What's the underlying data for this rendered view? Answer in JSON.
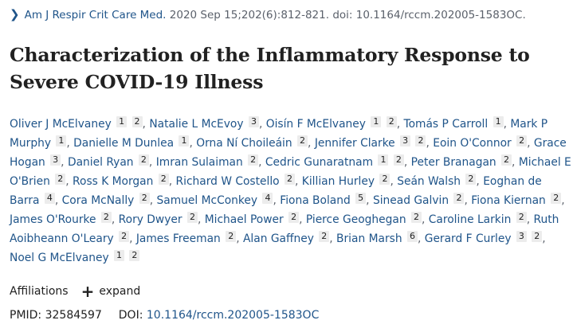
{
  "citation": {
    "journal": "Am J Respir Crit Care Med.",
    "details": "2020 Sep 15;202(6):812-821. doi: 10.1164/rccm.202005-1583OC."
  },
  "title": "Characterization of the Inflammatory Response to Severe COVID-19 Illness",
  "authors": [
    {
      "name": "Oliver J McElvaney",
      "aff": [
        "1",
        "2"
      ]
    },
    {
      "name": "Natalie L McEvoy",
      "aff": [
        "3"
      ]
    },
    {
      "name": "Oisín F McElvaney",
      "aff": [
        "1",
        "2"
      ]
    },
    {
      "name": "Tomás P Carroll",
      "aff": [
        "1"
      ]
    },
    {
      "name": "Mark P Murphy",
      "aff": [
        "1"
      ]
    },
    {
      "name": "Danielle M Dunlea",
      "aff": [
        "1"
      ]
    },
    {
      "name": "Orna Ní Choileáin",
      "aff": [
        "2"
      ]
    },
    {
      "name": "Jennifer Clarke",
      "aff": [
        "3",
        "2"
      ]
    },
    {
      "name": "Eoin O'Connor",
      "aff": [
        "2"
      ]
    },
    {
      "name": "Grace Hogan",
      "aff": [
        "3"
      ]
    },
    {
      "name": "Daniel Ryan",
      "aff": [
        "2"
      ]
    },
    {
      "name": "Imran Sulaiman",
      "aff": [
        "2"
      ]
    },
    {
      "name": "Cedric Gunaratnam",
      "aff": [
        "1",
        "2"
      ]
    },
    {
      "name": "Peter Branagan",
      "aff": [
        "2"
      ]
    },
    {
      "name": "Michael E O'Brien",
      "aff": [
        "2"
      ]
    },
    {
      "name": "Ross K Morgan",
      "aff": [
        "2"
      ]
    },
    {
      "name": "Richard W Costello",
      "aff": [
        "2"
      ]
    },
    {
      "name": "Killian Hurley",
      "aff": [
        "2"
      ]
    },
    {
      "name": "Seán Walsh",
      "aff": [
        "2"
      ]
    },
    {
      "name": "Eoghan de Barra",
      "aff": [
        "4"
      ]
    },
    {
      "name": "Cora McNally",
      "aff": [
        "2"
      ]
    },
    {
      "name": "Samuel McConkey",
      "aff": [
        "4"
      ]
    },
    {
      "name": "Fiona Boland",
      "aff": [
        "5"
      ]
    },
    {
      "name": "Sinead Galvin",
      "aff": [
        "2"
      ]
    },
    {
      "name": "Fiona Kiernan",
      "aff": [
        "2"
      ]
    },
    {
      "name": "James O'Rourke",
      "aff": [
        "2"
      ]
    },
    {
      "name": "Rory Dwyer",
      "aff": [
        "2"
      ]
    },
    {
      "name": "Michael Power",
      "aff": [
        "2"
      ]
    },
    {
      "name": "Pierce Geoghegan",
      "aff": [
        "2"
      ]
    },
    {
      "name": "Caroline Larkin",
      "aff": [
        "2"
      ]
    },
    {
      "name": "Ruth Aoibheann O'Leary",
      "aff": [
        "2"
      ]
    },
    {
      "name": "James Freeman",
      "aff": [
        "2"
      ]
    },
    {
      "name": "Alan Gaffney",
      "aff": [
        "2"
      ]
    },
    {
      "name": "Brian Marsh",
      "aff": [
        "6"
      ]
    },
    {
      "name": "Gerard F Curley",
      "aff": [
        "3",
        "2"
      ]
    },
    {
      "name": "Noel G McElvaney",
      "aff": [
        "1",
        "2"
      ]
    }
  ],
  "affiliations": {
    "label": "Affiliations",
    "expand_label": "expand",
    "expand_icon": "plus-icon"
  },
  "identifiers": {
    "pmid_label": "PMID:",
    "pmid": "32584597",
    "doi_label": "DOI:",
    "doi": "10.1164/rccm.202005-1583OC"
  },
  "colors": {
    "link": "#20558a",
    "text": "#212121",
    "muted": "#5b616b",
    "badge_bg": "#ececec"
  }
}
